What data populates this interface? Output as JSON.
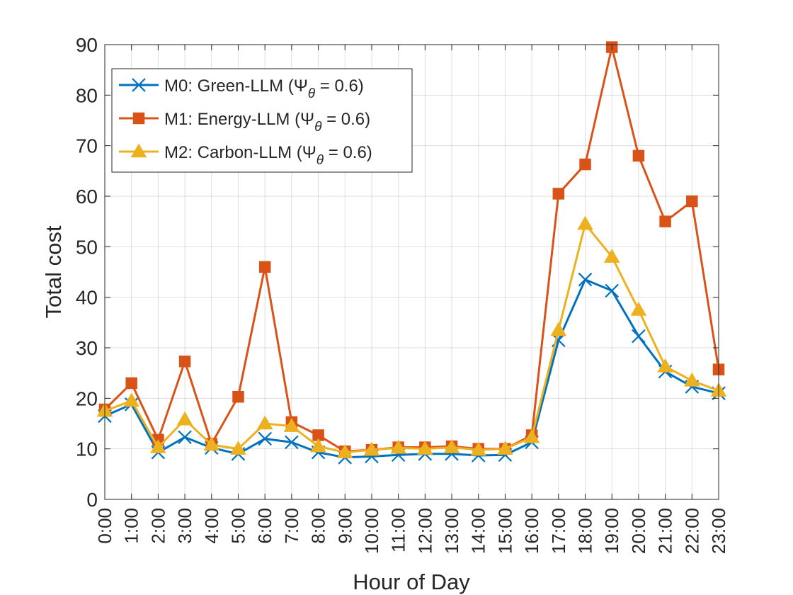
{
  "chart_data": {
    "type": "line",
    "xlabel": "Hour of Day",
    "ylabel": "Total cost",
    "categories": [
      "0:00",
      "1:00",
      "2:00",
      "3:00",
      "4:00",
      "5:00",
      "6:00",
      "7:00",
      "8:00",
      "9:00",
      "10:00",
      "11:00",
      "12:00",
      "13:00",
      "14:00",
      "15:00",
      "16:00",
      "17:00",
      "18:00",
      "19:00",
      "20:00",
      "21:00",
      "22:00",
      "23:00"
    ],
    "ylim": [
      0,
      90
    ],
    "yticks": [
      0,
      10,
      20,
      30,
      40,
      50,
      60,
      70,
      80,
      90
    ],
    "grid": true,
    "legend_position": "top-left",
    "series": [
      {
        "name": "M0: Green-LLM (Ψ",
        "name_sub": "θ",
        "name_end": " = 0.6)",
        "marker": "x",
        "color": "#0072BD",
        "values": [
          16.5,
          18.8,
          9.3,
          12.3,
          10.2,
          9.0,
          12.0,
          11.3,
          9.3,
          8.3,
          8.5,
          8.8,
          9.0,
          9.0,
          8.7,
          8.8,
          11.3,
          31.5,
          43.5,
          41.3,
          32.3,
          25.3,
          22.3,
          21.0
        ]
      },
      {
        "name": "M1: Energy-LLM (Ψ",
        "name_sub": "θ",
        "name_end": " = 0.6)",
        "marker": "square",
        "color": "#D95319",
        "values": [
          17.8,
          23.0,
          11.8,
          27.3,
          11.0,
          20.3,
          46.0,
          15.3,
          12.7,
          9.5,
          9.8,
          10.3,
          10.3,
          10.5,
          10.0,
          10.0,
          12.7,
          60.5,
          66.3,
          89.5,
          68.0,
          55.0,
          59.0,
          25.7
        ]
      },
      {
        "name": "M2: Carbon-LLM (Ψ",
        "name_sub": "θ",
        "name_end": " = 0.6)",
        "marker": "triangle",
        "color": "#EDB120",
        "values": [
          17.5,
          19.5,
          10.3,
          15.8,
          10.8,
          10.0,
          15.0,
          14.5,
          10.5,
          9.3,
          9.8,
          10.2,
          10.0,
          10.3,
          9.8,
          10.0,
          12.3,
          33.5,
          54.5,
          48.0,
          37.5,
          26.3,
          23.5,
          21.5
        ]
      }
    ]
  }
}
